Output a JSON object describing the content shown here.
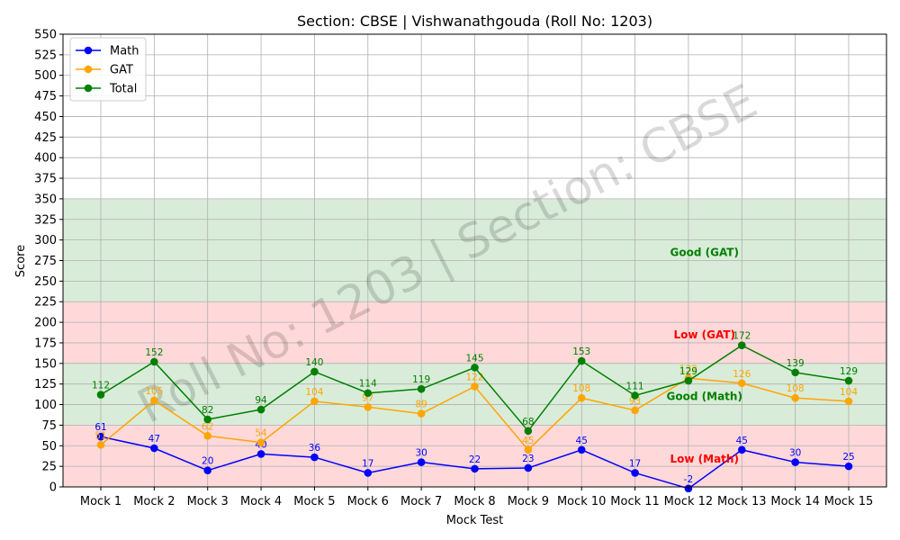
{
  "chart_data": {
    "type": "line",
    "title": "Section: CBSE | Vishwanathgouda  (Roll No: 1203)",
    "xlabel": "Mock Test",
    "ylabel": "Score",
    "ylim": [
      0,
      550
    ],
    "yticks": [
      0,
      25,
      50,
      75,
      100,
      125,
      150,
      175,
      200,
      225,
      250,
      275,
      300,
      325,
      350,
      375,
      400,
      425,
      450,
      475,
      500,
      525,
      550
    ],
    "grid": true,
    "legend": "top-left",
    "categories": [
      "Mock 1",
      "Mock 2",
      "Mock 3",
      "Mock 4",
      "Mock 5",
      "Mock 6",
      "Mock 7",
      "Mock 8",
      "Mock 9",
      "Mock 10",
      "Mock 11",
      "Mock 12",
      "Mock 13",
      "Mock 14",
      "Mock 15"
    ],
    "series": [
      {
        "name": "Math",
        "color": "#0000ff",
        "values": [
          61,
          47,
          20,
          40,
          36,
          17,
          30,
          22,
          23,
          45,
          17,
          -2,
          45,
          30,
          25
        ]
      },
      {
        "name": "GAT",
        "color": "#ffa500",
        "values": [
          51,
          105,
          62,
          54,
          104,
          97,
          89,
          122,
          45,
          108,
          93,
          132,
          126,
          108,
          104
        ]
      },
      {
        "name": "Total",
        "color": "#008000",
        "values": [
          112,
          152,
          82,
          94,
          140,
          114,
          119,
          145,
          68,
          153,
          111,
          129,
          172,
          139,
          129
        ]
      }
    ],
    "bands": [
      {
        "from": 0,
        "to": 75,
        "color": "#ff0000",
        "opacity": 0.15
      },
      {
        "from": 75,
        "to": 150,
        "color": "#008000",
        "opacity": 0.15
      },
      {
        "from": 150,
        "to": 225,
        "color": "#ff0000",
        "opacity": 0.15
      },
      {
        "from": 225,
        "to": 350,
        "color": "#008000",
        "opacity": 0.15
      }
    ],
    "annotations": [
      {
        "text": "Good (GAT)",
        "x": 12.3,
        "y": 285,
        "color": "#008000"
      },
      {
        "text": "Low (GAT)",
        "x": 12.3,
        "y": 185,
        "color": "#ff0000"
      },
      {
        "text": "Good (Math)",
        "x": 12.3,
        "y": 110,
        "color": "#008000"
      },
      {
        "text": "Low (Math)",
        "x": 12.3,
        "y": 34,
        "color": "#ff0000"
      }
    ],
    "watermark": "Roll No: 1203 | Section: CBSE"
  }
}
